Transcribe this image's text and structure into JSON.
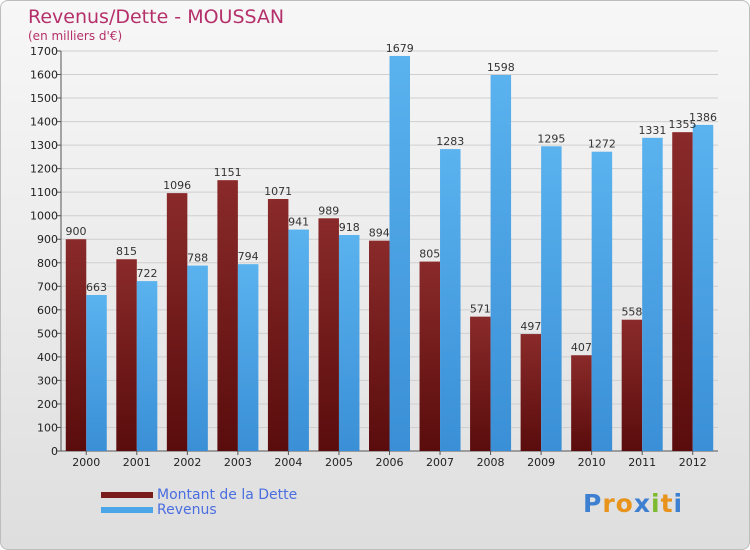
{
  "header": {
    "title": "Revenus/Dette - MOUSSAN",
    "subtitle": "(en milliers d'€)"
  },
  "colors": {
    "dette": "#7a1c1c",
    "revenus": "#4aa6e6",
    "title": "#b5306a",
    "legend_text": "#4a6ee0"
  },
  "chart_data": {
    "type": "bar",
    "title": "Revenus/Dette - MOUSSAN",
    "subtitle": "(en milliers d'€)",
    "xlabel": "",
    "ylabel": "",
    "ylim": [
      0,
      1700
    ],
    "yticks": [
      0,
      100,
      200,
      300,
      400,
      500,
      600,
      700,
      800,
      900,
      1000,
      1100,
      1200,
      1300,
      1400,
      1500,
      1600,
      1700
    ],
    "grid": true,
    "legend_position": "bottom-left",
    "categories": [
      "2000",
      "2001",
      "2002",
      "2003",
      "2004",
      "2005",
      "2006",
      "2007",
      "2008",
      "2009",
      "2010",
      "2011",
      "2012"
    ],
    "series": [
      {
        "name": "Montant de la Dette",
        "values": [
          900,
          815,
          1096,
          1151,
          1071,
          989,
          894,
          805,
          571,
          497,
          407,
          558,
          1355
        ],
        "labels": [
          "900",
          "815",
          "1096",
          "1151",
          "1071",
          "989",
          "894",
          "805",
          "571",
          "497",
          "407",
          "558",
          "1355"
        ]
      },
      {
        "name": "Revenus",
        "values": [
          663,
          722,
          788,
          794,
          941,
          918,
          1679,
          1283,
          1598,
          1295,
          1272,
          1331,
          1386
        ],
        "labels": [
          "663",
          "722",
          "788",
          "794",
          "941",
          "918",
          "1679",
          "1283",
          "1598",
          "1295",
          "1272",
          "1331",
          "1386"
        ]
      }
    ]
  },
  "legend": {
    "items": [
      {
        "label": "Montant de la Dette",
        "color": "#7a1c1c"
      },
      {
        "label": "Revenus",
        "color": "#4aa6e6"
      }
    ]
  },
  "logo": {
    "letters": [
      "P",
      "r",
      "o",
      "x",
      "i",
      "t",
      "i"
    ],
    "colors": [
      "#3d7fd0",
      "#e8941c",
      "#e8941c",
      "#3d7fd0",
      "#7dbb2e",
      "#e8941c",
      "#3d7fd0"
    ]
  }
}
